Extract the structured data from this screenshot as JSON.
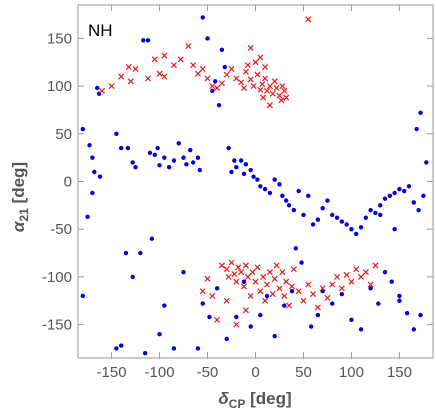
{
  "chart_data": {
    "type": "scatter",
    "annotation": "NH",
    "xlabel_main": "δ",
    "xlabel_sub": "CP",
    "xlabel_unit": " [deg]",
    "ylabel_main": "α",
    "ylabel_sub": "21",
    "ylabel_unit": " [deg]",
    "xlim": [
      -185,
      185
    ],
    "ylim": [
      -185,
      185
    ],
    "xticks": [
      -150,
      -100,
      -50,
      0,
      50,
      100,
      150
    ],
    "yticks": [
      -150,
      -100,
      -50,
      0,
      50,
      100,
      150
    ],
    "grid": false,
    "colors": {
      "blue": "#0000dd",
      "red": "#e31a1c",
      "frame": "#999999"
    },
    "series": [
      {
        "marker": "dot",
        "color": "#0000dd",
        "points": [
          [
            -180,
            55
          ],
          [
            -173,
            38
          ],
          [
            -170,
            25
          ],
          [
            -165,
            98
          ],
          [
            -163,
            92
          ],
          [
            -168,
            10
          ],
          [
            -162,
            5
          ],
          [
            -175,
            -37
          ],
          [
            -170,
            -12
          ],
          [
            -145,
            50
          ],
          [
            -140,
            35
          ],
          [
            -133,
            35
          ],
          [
            -128,
            20
          ],
          [
            -125,
            15
          ],
          [
            -117,
            148
          ],
          [
            -112,
            148
          ],
          [
            -110,
            30
          ],
          [
            -105,
            28
          ],
          [
            -102,
            35
          ],
          [
            -100,
            17
          ],
          [
            -95,
            25
          ],
          [
            -90,
            15
          ],
          [
            -85,
            22
          ],
          [
            -80,
            40
          ],
          [
            -75,
            25
          ],
          [
            -72,
            18
          ],
          [
            -68,
            33
          ],
          [
            -65,
            20
          ],
          [
            -60,
            25
          ],
          [
            -58,
            12
          ],
          [
            -55,
            172
          ],
          [
            -50,
            150
          ],
          [
            -45,
            95
          ],
          [
            -42,
            105
          ],
          [
            -38,
            80
          ],
          [
            -35,
            138
          ],
          [
            -32,
            120
          ],
          [
            -28,
            35
          ],
          [
            -25,
            10
          ],
          [
            -22,
            22
          ],
          [
            -20,
            15
          ],
          [
            -15,
            22
          ],
          [
            -12,
            8
          ],
          [
            -10,
            18
          ],
          [
            -5,
            12
          ],
          [
            -2,
            5
          ],
          [
            2,
            2
          ],
          [
            5,
            -5
          ],
          [
            10,
            -8
          ],
          [
            15,
            -12
          ],
          [
            20,
            2
          ],
          [
            25,
            -3
          ],
          [
            28,
            -15
          ],
          [
            32,
            -20
          ],
          [
            35,
            -25
          ],
          [
            40,
            -30
          ],
          [
            45,
            -10
          ],
          [
            50,
            -35
          ],
          [
            55,
            -15
          ],
          [
            60,
            -45
          ],
          [
            65,
            -40
          ],
          [
            70,
            -28
          ],
          [
            75,
            -20
          ],
          [
            80,
            -35
          ],
          [
            85,
            -38
          ],
          [
            90,
            -42
          ],
          [
            95,
            -45
          ],
          [
            100,
            -50
          ],
          [
            105,
            -55
          ],
          [
            110,
            -48
          ],
          [
            115,
            -38
          ],
          [
            120,
            -30
          ],
          [
            125,
            -33
          ],
          [
            130,
            -25
          ],
          [
            135,
            -18
          ],
          [
            140,
            -15
          ],
          [
            145,
            -12
          ],
          [
            150,
            -8
          ],
          [
            155,
            -10
          ],
          [
            160,
            -5
          ],
          [
            165,
            -22
          ],
          [
            170,
            -30
          ],
          [
            175,
            -15
          ],
          [
            178,
            20
          ],
          [
            172,
            72
          ],
          [
            168,
            55
          ],
          [
            -180,
            -120
          ],
          [
            -145,
            -175
          ],
          [
            -140,
            -172
          ],
          [
            -128,
            -100
          ],
          [
            -120,
            -75
          ],
          [
            -115,
            -180
          ],
          [
            -108,
            -60
          ],
          [
            -100,
            -160
          ],
          [
            -95,
            -130
          ],
          [
            -85,
            -175
          ],
          [
            -75,
            -95
          ],
          [
            -60,
            -175
          ],
          [
            -55,
            -128
          ],
          [
            -48,
            -142
          ],
          [
            -40,
            -112
          ],
          [
            -30,
            -165
          ],
          [
            -20,
            -142
          ],
          [
            -12,
            -105
          ],
          [
            -5,
            -152
          ],
          [
            5,
            -140
          ],
          [
            12,
            -120
          ],
          [
            20,
            -162
          ],
          [
            30,
            -130
          ],
          [
            38,
            -115
          ],
          [
            42,
            -70
          ],
          [
            48,
            -85
          ],
          [
            58,
            -152
          ],
          [
            65,
            -140
          ],
          [
            70,
            -115
          ],
          [
            80,
            -128
          ],
          [
            90,
            -118
          ],
          [
            100,
            -145
          ],
          [
            110,
            -155
          ],
          [
            120,
            -112
          ],
          [
            128,
            -128
          ],
          [
            135,
            -95
          ],
          [
            142,
            -105
          ],
          [
            150,
            -120
          ],
          [
            158,
            -138
          ],
          [
            165,
            -155
          ],
          [
            172,
            -140
          ],
          [
            150,
            -125
          ],
          [
            -135,
            -75
          ],
          [
            145,
            -50
          ],
          [
            130,
            -35
          ]
        ]
      },
      {
        "marker": "cross",
        "color": "#e31a1c",
        "points": [
          [
            -160,
            95
          ],
          [
            -150,
            100
          ],
          [
            -140,
            110
          ],
          [
            -132,
            120
          ],
          [
            -125,
            118
          ],
          [
            -112,
            108
          ],
          [
            -105,
            128
          ],
          [
            -100,
            113
          ],
          [
            -95,
            132
          ],
          [
            -85,
            122
          ],
          [
            -78,
            128
          ],
          [
            -70,
            142
          ],
          [
            -65,
            122
          ],
          [
            -60,
            113
          ],
          [
            -55,
            118
          ],
          [
            -50,
            108
          ],
          [
            -45,
            100
          ],
          [
            -40,
            98
          ],
          [
            -35,
            103
          ],
          [
            -30,
            112
          ],
          [
            -25,
            118
          ],
          [
            -20,
            108
          ],
          [
            -15,
            104
          ],
          [
            -12,
            98
          ],
          [
            -10,
            115
          ],
          [
            -8,
            122
          ],
          [
            -5,
            107
          ],
          [
            -2,
            100
          ],
          [
            0,
            125
          ],
          [
            2,
            112
          ],
          [
            5,
            96
          ],
          [
            7,
            102
          ],
          [
            8,
            88
          ],
          [
            10,
            108
          ],
          [
            12,
            95
          ],
          [
            15,
            100
          ],
          [
            18,
            92
          ],
          [
            20,
            105
          ],
          [
            22,
            98
          ],
          [
            25,
            90
          ],
          [
            27,
            85
          ],
          [
            28,
            100
          ],
          [
            30,
            95
          ],
          [
            32,
            88
          ],
          [
            10,
            120
          ],
          [
            5,
            130
          ],
          [
            -5,
            140
          ],
          [
            15,
            80
          ],
          [
            55,
            170
          ],
          [
            -130,
            105
          ],
          [
            -95,
            110
          ],
          [
            -35,
            -88
          ],
          [
            -30,
            -92
          ],
          [
            -28,
            -100
          ],
          [
            -25,
            -85
          ],
          [
            -22,
            -97
          ],
          [
            -20,
            -105
          ],
          [
            -18,
            -90
          ],
          [
            -15,
            -95
          ],
          [
            -12,
            -110
          ],
          [
            -10,
            -88
          ],
          [
            -8,
            -100
          ],
          [
            -5,
            -120
          ],
          [
            -3,
            -95
          ],
          [
            0,
            -105
          ],
          [
            2,
            -90
          ],
          [
            5,
            -115
          ],
          [
            8,
            -100
          ],
          [
            10,
            -125
          ],
          [
            12,
            -108
          ],
          [
            15,
            -95
          ],
          [
            18,
            -118
          ],
          [
            20,
            -102
          ],
          [
            22,
            -88
          ],
          [
            25,
            -112
          ],
          [
            28,
            -95
          ],
          [
            30,
            -120
          ],
          [
            32,
            -105
          ],
          [
            35,
            -130
          ],
          [
            38,
            -110
          ],
          [
            40,
            -92
          ],
          [
            45,
            -115
          ],
          [
            50,
            -125
          ],
          [
            55,
            -108
          ],
          [
            60,
            -118
          ],
          [
            65,
            -132
          ],
          [
            70,
            -112
          ],
          [
            75,
            -122
          ],
          [
            80,
            -108
          ],
          [
            85,
            -100
          ],
          [
            90,
            -112
          ],
          [
            95,
            -98
          ],
          [
            100,
            -105
          ],
          [
            105,
            -92
          ],
          [
            110,
            -100
          ],
          [
            115,
            -95
          ],
          [
            120,
            -108
          ],
          [
            125,
            -88
          ],
          [
            -50,
            -102
          ],
          [
            -45,
            -120
          ],
          [
            -40,
            -145
          ],
          [
            -30,
            -125
          ],
          [
            -20,
            -150
          ],
          [
            -10,
            -135
          ],
          [
            -55,
            -115
          ]
        ]
      }
    ]
  }
}
